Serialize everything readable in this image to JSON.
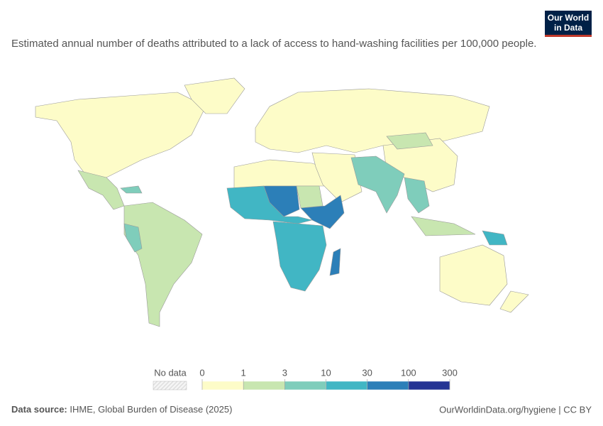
{
  "header": {
    "title": "Estimated annual number of deaths attributed to a lack of access to hand-washing facilities per 100,000 people.",
    "logo": [
      "Our World",
      "in Data"
    ]
  },
  "legend": {
    "no_data": "No data",
    "ticks": [
      0,
      1,
      3,
      10,
      30,
      100,
      300
    ],
    "colors": [
      "#fdfcc8",
      "#c8e6b0",
      "#7fcdbb",
      "#41b6c4",
      "#2c7fb8",
      "#253494"
    ]
  },
  "footer": {
    "source_label": "Data source:",
    "source": "IHME, Global Burden of Disease (2025)",
    "link": "OurWorldinData.org/hygiene | CC BY"
  }
}
